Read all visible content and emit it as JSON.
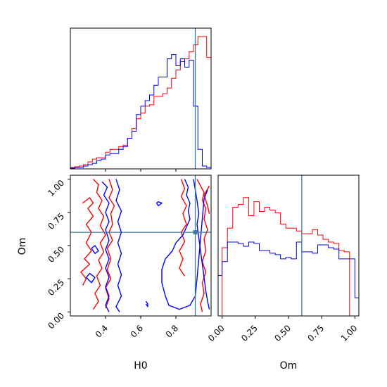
{
  "chart_data": {
    "type": "corner",
    "parameters": [
      "H0",
      "Om"
    ],
    "truths": {
      "H0": 0.91,
      "Om": 0.6
    },
    "colors": {
      "series_a": "#ff0000",
      "series_b": "#0000ff",
      "truth": "#3b7ea1"
    },
    "hist_H0": {
      "xlim": [
        0.2,
        1.0
      ],
      "bin_edges": [
        0.2,
        0.225,
        0.25,
        0.275,
        0.3,
        0.325,
        0.35,
        0.375,
        0.4,
        0.425,
        0.45,
        0.475,
        0.5,
        0.525,
        0.55,
        0.575,
        0.6,
        0.625,
        0.65,
        0.675,
        0.7,
        0.725,
        0.75,
        0.775,
        0.8,
        0.825,
        0.85,
        0.875,
        0.9,
        0.925,
        0.95,
        0.975,
        1.0
      ],
      "series": [
        {
          "color": "red",
          "values": [
            0.01,
            0.015,
            0.02,
            0.03,
            0.05,
            0.07,
            0.08,
            0.08,
            0.12,
            0.14,
            0.14,
            0.16,
            0.17,
            0.22,
            0.29,
            0.36,
            0.4,
            0.45,
            0.46,
            0.52,
            0.52,
            0.54,
            0.58,
            0.65,
            0.71,
            0.77,
            0.79,
            0.84,
            0.89,
            0.95,
            0.95,
            0.8
          ]
        },
        {
          "color": "blue",
          "values": [
            0.005,
            0.01,
            0.01,
            0.02,
            0.03,
            0.04,
            0.06,
            0.07,
            0.1,
            0.11,
            0.11,
            0.14,
            0.16,
            0.22,
            0.27,
            0.39,
            0.45,
            0.49,
            0.53,
            0.6,
            0.66,
            0.66,
            0.79,
            0.82,
            0.74,
            0.79,
            0.73,
            0.78,
            0.45,
            0.14,
            0.02,
            0.01
          ]
        }
      ],
      "xticks": [
        0.4,
        0.6,
        0.8
      ]
    },
    "hist_Om": {
      "xlim": [
        -0.03,
        1.03
      ],
      "bin_edges": [
        -0.04,
        0.0,
        0.04,
        0.08,
        0.12,
        0.16,
        0.2,
        0.24,
        0.28,
        0.32,
        0.36,
        0.4,
        0.44,
        0.48,
        0.52,
        0.56,
        0.6,
        0.64,
        0.68,
        0.72,
        0.76,
        0.8,
        0.84,
        0.88,
        0.92,
        0.96,
        1.0,
        1.04
      ],
      "series": [
        {
          "color": "red",
          "values": [
            0.0,
            0.49,
            0.63,
            0.78,
            0.8,
            0.85,
            0.72,
            0.82,
            0.75,
            0.78,
            0.76,
            0.74,
            0.66,
            0.63,
            0.63,
            0.61,
            0.59,
            0.59,
            0.62,
            0.58,
            0.55,
            0.53,
            0.52,
            0.47,
            0.46,
            0.0,
            0.0
          ]
        },
        {
          "color": "blue",
          "values": [
            0.29,
            0.39,
            0.53,
            0.53,
            0.52,
            0.5,
            0.53,
            0.52,
            0.47,
            0.47,
            0.45,
            0.44,
            0.41,
            0.42,
            0.41,
            0.53,
            0.46,
            0.46,
            0.45,
            0.51,
            0.51,
            0.49,
            0.48,
            0.41,
            0.41,
            0.41,
            0.13
          ]
        }
      ],
      "xticks": [
        0.0,
        0.25,
        0.5,
        0.75,
        1.0
      ],
      "xtick_labels": [
        "0.00",
        "0.25",
        "0.50",
        "0.75",
        "1.00"
      ]
    },
    "joint": {
      "xlim": [
        0.2,
        1.0
      ],
      "ylim": [
        -0.03,
        1.03
      ],
      "xticks": [
        0.4,
        0.6,
        0.8
      ],
      "xtick_labels": [
        "0.4",
        "0.6",
        "0.8"
      ],
      "yticks": [
        0.0,
        0.25,
        0.5,
        0.75,
        1.0
      ],
      "ytick_labels": [
        "0.00",
        "0.25",
        "0.50",
        "0.75",
        "1.00"
      ],
      "contours": [
        {
          "color": "red",
          "points": [
            [
              0.33,
              1.0
            ],
            [
              0.36,
              0.96
            ],
            [
              0.35,
              0.9
            ],
            [
              0.38,
              0.84
            ],
            [
              0.36,
              0.78
            ],
            [
              0.39,
              0.72
            ],
            [
              0.37,
              0.65
            ],
            [
              0.4,
              0.58
            ],
            [
              0.37,
              0.52
            ],
            [
              0.39,
              0.45
            ],
            [
              0.36,
              0.39
            ],
            [
              0.38,
              0.33
            ],
            [
              0.35,
              0.27
            ],
            [
              0.37,
              0.2
            ],
            [
              0.34,
              0.14
            ],
            [
              0.36,
              0.08
            ],
            [
              0.33,
              0.02
            ]
          ]
        },
        {
          "color": "red",
          "points": [
            [
              0.27,
              0.82
            ],
            [
              0.31,
              0.86
            ],
            [
              0.33,
              0.82
            ],
            [
              0.3,
              0.78
            ],
            [
              0.33,
              0.72
            ],
            [
              0.29,
              0.66
            ],
            [
              0.32,
              0.6
            ],
            [
              0.29,
              0.52
            ],
            [
              0.32,
              0.46
            ],
            [
              0.28,
              0.4
            ],
            [
              0.31,
              0.36
            ],
            [
              0.26,
              0.3
            ],
            [
              0.29,
              0.25
            ],
            [
              0.27,
              0.2
            ]
          ]
        },
        {
          "color": "red",
          "points": [
            [
              0.42,
              1.0
            ],
            [
              0.44,
              0.92
            ],
            [
              0.42,
              0.86
            ],
            [
              0.45,
              0.8
            ],
            [
              0.43,
              0.74
            ],
            [
              0.44,
              0.66
            ],
            [
              0.42,
              0.6
            ],
            [
              0.44,
              0.54
            ],
            [
              0.41,
              0.48
            ],
            [
              0.43,
              0.4
            ],
            [
              0.41,
              0.32
            ],
            [
              0.43,
              0.25
            ],
            [
              0.4,
              0.18
            ],
            [
              0.42,
              0.1
            ],
            [
              0.4,
              0.03
            ]
          ]
        },
        {
          "color": "red",
          "points": [
            [
              0.92,
              1.0
            ],
            [
              0.94,
              0.95
            ],
            [
              0.96,
              0.9
            ],
            [
              0.95,
              0.84
            ],
            [
              0.97,
              0.78
            ],
            [
              0.96,
              0.7
            ],
            [
              0.98,
              0.62
            ],
            [
              0.96,
              0.55
            ],
            [
              0.97,
              0.46
            ],
            [
              0.95,
              0.38
            ],
            [
              0.97,
              0.3
            ],
            [
              0.95,
              0.22
            ],
            [
              0.96,
              0.14
            ],
            [
              0.94,
              0.06
            ],
            [
              0.95,
              0.0
            ]
          ]
        },
        {
          "color": "red",
          "points": [
            [
              0.83,
              1.0
            ],
            [
              0.85,
              0.93
            ],
            [
              0.83,
              0.87
            ],
            [
              0.86,
              0.8
            ],
            [
              0.84,
              0.74
            ],
            [
              0.86,
              0.66
            ],
            [
              0.83,
              0.6
            ],
            [
              0.85,
              0.53
            ],
            [
              0.82,
              0.46
            ],
            [
              0.84,
              0.4
            ],
            [
              0.82,
              0.33
            ],
            [
              0.85,
              0.27
            ]
          ]
        },
        {
          "color": "red",
          "points": [
            [
              0.99,
              0.95
            ],
            [
              0.96,
              0.88
            ],
            [
              0.98,
              0.8
            ],
            [
              0.99,
              0.74
            ]
          ]
        },
        {
          "color": "blue",
          "points": [
            [
              0.38,
              0.98
            ],
            [
              0.41,
              0.94
            ],
            [
              0.39,
              0.88
            ],
            [
              0.42,
              0.82
            ],
            [
              0.4,
              0.75
            ],
            [
              0.42,
              0.68
            ],
            [
              0.4,
              0.62
            ],
            [
              0.42,
              0.54
            ],
            [
              0.4,
              0.47
            ],
            [
              0.42,
              0.4
            ],
            [
              0.4,
              0.33
            ],
            [
              0.42,
              0.26
            ],
            [
              0.4,
              0.19
            ],
            [
              0.42,
              0.12
            ],
            [
              0.4,
              0.05
            ],
            [
              0.42,
              0.0
            ]
          ]
        },
        {
          "color": "blue",
          "points": [
            [
              0.46,
              1.0
            ],
            [
              0.48,
              0.92
            ],
            [
              0.46,
              0.84
            ],
            [
              0.49,
              0.76
            ],
            [
              0.47,
              0.68
            ],
            [
              0.49,
              0.6
            ],
            [
              0.47,
              0.52
            ],
            [
              0.49,
              0.44
            ],
            [
              0.47,
              0.36
            ],
            [
              0.49,
              0.28
            ],
            [
              0.47,
              0.2
            ],
            [
              0.49,
              0.12
            ],
            [
              0.46,
              0.04
            ],
            [
              0.48,
              0.0
            ]
          ]
        },
        {
          "color": "blue",
          "points": [
            [
              0.32,
              0.48
            ],
            [
              0.34,
              0.44
            ],
            [
              0.36,
              0.46
            ],
            [
              0.34,
              0.5
            ],
            [
              0.32,
              0.48
            ]
          ]
        },
        {
          "color": "blue",
          "points": [
            [
              0.29,
              0.26
            ],
            [
              0.32,
              0.22
            ],
            [
              0.34,
              0.26
            ],
            [
              0.31,
              0.29
            ],
            [
              0.29,
              0.26
            ]
          ]
        },
        {
          "color": "blue",
          "points": [
            [
              0.85,
              1.0
            ],
            [
              0.87,
              0.94
            ],
            [
              0.86,
              0.88
            ],
            [
              0.88,
              0.82
            ],
            [
              0.87,
              0.76
            ],
            [
              0.88,
              0.7
            ],
            [
              0.86,
              0.64
            ],
            [
              0.84,
              0.58
            ],
            [
              0.8,
              0.52
            ],
            [
              0.78,
              0.46
            ],
            [
              0.74,
              0.4
            ],
            [
              0.72,
              0.32
            ],
            [
              0.72,
              0.22
            ],
            [
              0.74,
              0.12
            ],
            [
              0.76,
              0.05
            ],
            [
              0.82,
              0.02
            ],
            [
              0.88,
              0.05
            ],
            [
              0.91,
              0.12
            ],
            [
              0.92,
              0.25
            ],
            [
              0.93,
              0.4
            ],
            [
              0.94,
              0.55
            ],
            [
              0.95,
              0.7
            ],
            [
              0.96,
              0.85
            ],
            [
              0.98,
              0.92
            ]
          ]
        },
        {
          "color": "blue",
          "points": [
            [
              0.9,
              1.0
            ],
            [
              0.91,
              0.92
            ],
            [
              0.92,
              0.84
            ],
            [
              0.93,
              0.74
            ],
            [
              0.92,
              0.66
            ],
            [
              0.93,
              0.56
            ],
            [
              0.94,
              0.46
            ],
            [
              0.95,
              0.36
            ],
            [
              0.96,
              0.26
            ],
            [
              0.97,
              0.16
            ],
            [
              0.98,
              0.08
            ],
            [
              0.99,
              0.02
            ]
          ]
        },
        {
          "color": "blue",
          "points": [
            [
              0.69,
              0.82
            ],
            [
              0.7,
              0.8
            ],
            [
              0.72,
              0.82
            ],
            [
              0.7,
              0.83
            ],
            [
              0.69,
              0.82
            ]
          ]
        },
        {
          "color": "blue",
          "points": [
            [
              0.63,
              0.08
            ],
            [
              0.64,
              0.06
            ],
            [
              0.64,
              0.04
            ],
            [
              0.63,
              0.06
            ]
          ]
        }
      ]
    },
    "labels": {
      "x_left": "H0",
      "x_right": "Om",
      "y_joint": "Om"
    }
  }
}
